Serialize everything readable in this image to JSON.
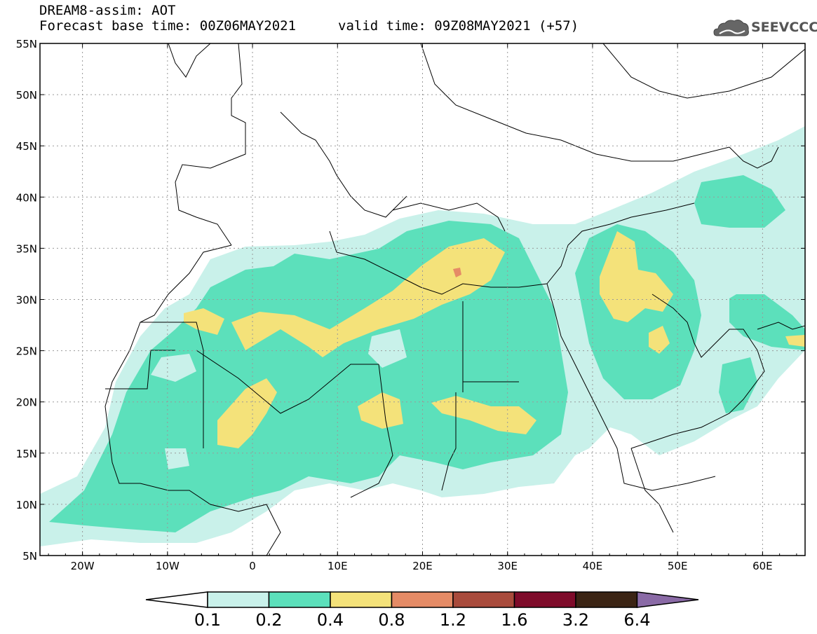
{
  "header": {
    "title": "DREAM8-assim: AOT",
    "base_time": "Forecast base time: 00Z06MAY2021",
    "valid_time": "valid time: 09Z08MAY2021 (+57)"
  },
  "logo": {
    "text": "SEEVCCC",
    "icon": "cloud-icon"
  },
  "map": {
    "variable": "AOT",
    "lat_range": [
      5,
      55
    ],
    "lon_range": [
      -25,
      65
    ],
    "grid": "dotted",
    "lat_labels": [
      "55N",
      "50N",
      "45N",
      "40N",
      "35N",
      "30N",
      "25N",
      "20N",
      "15N",
      "10N",
      "5N"
    ],
    "lon_labels": [
      "20W",
      "10W",
      "0",
      "10E",
      "20E",
      "30E",
      "40E",
      "50E",
      "60E"
    ]
  },
  "colorbar": {
    "labels": [
      "0.1",
      "0.2",
      "0.4",
      "0.8",
      "1.2",
      "1.6",
      "3.2",
      "6.4"
    ],
    "colors": [
      "#ffffff",
      "#c9f1ea",
      "#5ce0bb",
      "#f4e27a",
      "#e58b66",
      "#a94b3c",
      "#7e0b2a",
      "#3b2414",
      "#8a6aa6"
    ]
  }
}
